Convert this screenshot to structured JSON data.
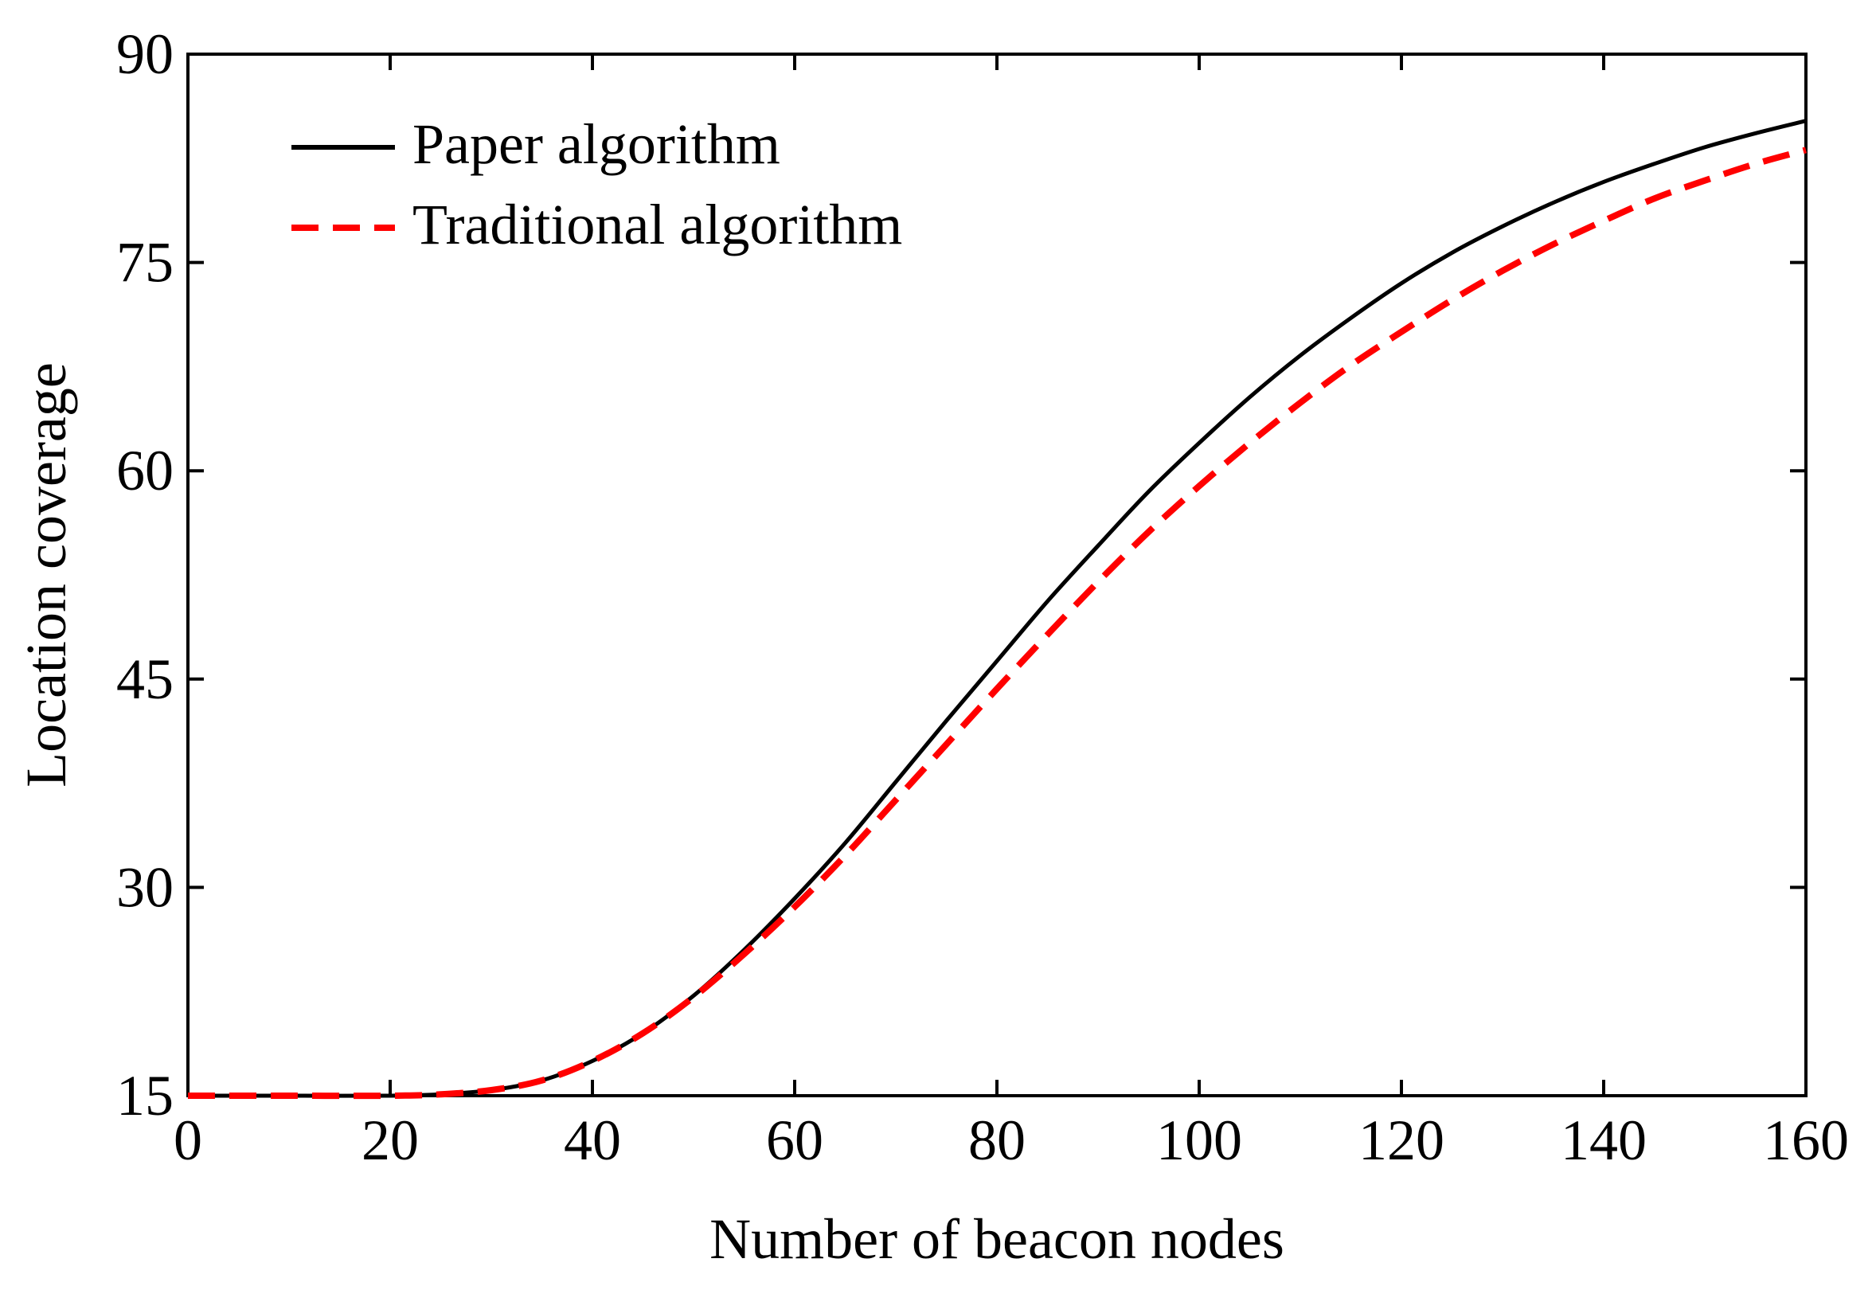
{
  "chart_data": {
    "type": "line",
    "title": "",
    "xlabel": "Number of beacon nodes",
    "ylabel": "Location coverage",
    "xlim": [
      0,
      160
    ],
    "ylim": [
      15,
      90
    ],
    "xticks": [
      0,
      20,
      40,
      60,
      80,
      100,
      120,
      140,
      160
    ],
    "yticks": [
      15,
      30,
      45,
      60,
      75,
      90
    ],
    "grid": false,
    "legend_position": "top-left",
    "x": [
      0,
      10,
      20,
      25,
      30,
      35,
      40,
      45,
      50,
      55,
      60,
      65,
      70,
      75,
      80,
      85,
      90,
      95,
      100,
      105,
      110,
      115,
      120,
      125,
      130,
      135,
      140,
      145,
      150,
      155,
      160
    ],
    "series": [
      {
        "name": "Paper algorithm",
        "color": "#000000",
        "style": "solid",
        "values": [
          15.0,
          15.0,
          15.0,
          15.1,
          15.4,
          16.1,
          17.5,
          19.5,
          22.2,
          25.5,
          29.2,
          33.2,
          37.6,
          42.0,
          46.3,
          50.6,
          54.6,
          58.5,
          62.0,
          65.3,
          68.3,
          71.0,
          73.5,
          75.7,
          77.6,
          79.3,
          80.8,
          82.1,
          83.3,
          84.3,
          85.2
        ]
      },
      {
        "name": "Traditional algorithm",
        "color": "#ff0000",
        "style": "dashed",
        "values": [
          15.0,
          15.0,
          15.0,
          15.1,
          15.4,
          16.1,
          17.5,
          19.5,
          22.1,
          25.2,
          28.6,
          32.3,
          36.3,
          40.3,
          44.3,
          48.2,
          52.0,
          55.6,
          58.9,
          62.0,
          64.9,
          67.6,
          70.0,
          72.3,
          74.4,
          76.3,
          78.0,
          79.6,
          80.9,
          82.1,
          83.1
        ]
      }
    ]
  }
}
